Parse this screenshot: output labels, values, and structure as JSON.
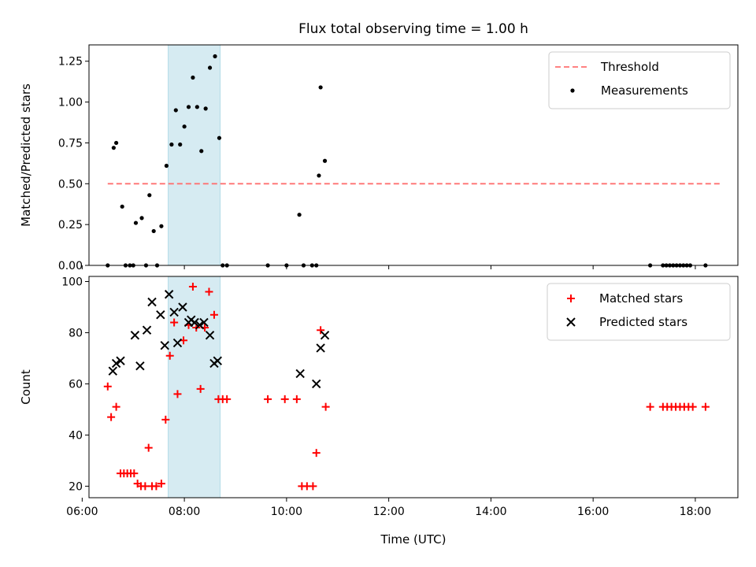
{
  "figure": {
    "title": "Flux total observing time = 1.00 h",
    "xlabel": "Time (UTC)"
  },
  "chart_data": [
    {
      "type": "scatter",
      "panel": "top",
      "title": "Flux total observing time = 1.00 h",
      "xlabel": "",
      "ylabel": "Matched/Predicted stars",
      "xlim": [
        "06:08",
        "18:50"
      ],
      "ylim": [
        0,
        1.35
      ],
      "xticks": [
        "06:00",
        "08:00",
        "10:00",
        "12:00",
        "14:00",
        "16:00",
        "18:00"
      ],
      "yticks": [
        "0.00",
        "0.25",
        "0.50",
        "0.75",
        "1.00",
        "1.25"
      ],
      "grid": false,
      "legend": "top-right",
      "highlight_span": {
        "x0": "07:41",
        "x1": "08:42",
        "color": "#add8e6"
      },
      "lines": [
        {
          "name": "Threshold",
          "color": "#ff7070",
          "style": "dashed",
          "x": [
            "06:30",
            "18:30"
          ],
          "y": [
            0.5,
            0.5
          ]
        }
      ],
      "series": [
        {
          "name": "Measurements",
          "color": "#000000",
          "marker": "dot",
          "points": [
            [
              "06:30",
              0
            ],
            [
              "06:37",
              0.72
            ],
            [
              "06:40",
              0.75
            ],
            [
              "06:47",
              0.36
            ],
            [
              "06:51",
              0
            ],
            [
              "06:56",
              0
            ],
            [
              "07:00",
              0
            ],
            [
              "07:03",
              0.26
            ],
            [
              "07:10",
              0.29
            ],
            [
              "07:15",
              0
            ],
            [
              "07:19",
              0.43
            ],
            [
              "07:24",
              0.21
            ],
            [
              "07:28",
              0
            ],
            [
              "07:33",
              0.24
            ],
            [
              "07:39",
              0.61
            ],
            [
              "07:45",
              0.74
            ],
            [
              "07:50",
              0.95
            ],
            [
              "07:55",
              0.74
            ],
            [
              "08:00",
              0.85
            ],
            [
              "08:05",
              0.97
            ],
            [
              "08:10",
              1.15
            ],
            [
              "08:15",
              0.97
            ],
            [
              "08:20",
              0.7
            ],
            [
              "08:25",
              0.96
            ],
            [
              "08:30",
              1.21
            ],
            [
              "08:36",
              1.28
            ],
            [
              "08:41",
              0.78
            ],
            [
              "08:45",
              0
            ],
            [
              "08:50",
              0
            ],
            [
              "09:38",
              0
            ],
            [
              "10:00",
              0
            ],
            [
              "10:15",
              0.31
            ],
            [
              "10:20",
              0
            ],
            [
              "10:30",
              0
            ],
            [
              "10:35",
              0
            ],
            [
              "10:38",
              0.55
            ],
            [
              "10:40",
              1.09
            ],
            [
              "10:45",
              0.64
            ],
            [
              "17:07",
              0
            ],
            [
              "17:22",
              0
            ],
            [
              "17:26",
              0
            ],
            [
              "17:30",
              0
            ],
            [
              "17:34",
              0
            ],
            [
              "17:38",
              0
            ],
            [
              "17:42",
              0
            ],
            [
              "17:46",
              0
            ],
            [
              "17:50",
              0
            ],
            [
              "17:54",
              0
            ],
            [
              "18:12",
              0
            ]
          ]
        }
      ]
    },
    {
      "type": "scatter",
      "panel": "bottom",
      "xlabel": "Time (UTC)",
      "ylabel": "Count",
      "xlim": [
        "06:08",
        "18:50"
      ],
      "ylim": [
        15.5,
        102
      ],
      "xticks": [
        "06:00",
        "08:00",
        "10:00",
        "12:00",
        "14:00",
        "16:00",
        "18:00"
      ],
      "yticks": [
        "20",
        "40",
        "60",
        "80",
        "100"
      ],
      "grid": false,
      "legend": "top-right",
      "highlight_span": {
        "x0": "07:41",
        "x1": "08:42",
        "color": "#add8e6"
      },
      "series": [
        {
          "name": "Matched stars",
          "color": "#ff0000",
          "marker": "plus",
          "points": [
            [
              "06:30",
              59
            ],
            [
              "06:34",
              47
            ],
            [
              "06:40",
              51
            ],
            [
              "06:45",
              25
            ],
            [
              "06:49",
              25
            ],
            [
              "06:53",
              25
            ],
            [
              "06:57",
              25
            ],
            [
              "07:01",
              25
            ],
            [
              "07:05",
              21
            ],
            [
              "07:09",
              20
            ],
            [
              "07:14",
              20
            ],
            [
              "07:18",
              35
            ],
            [
              "07:22",
              20
            ],
            [
              "07:27",
              20
            ],
            [
              "07:33",
              21
            ],
            [
              "07:38",
              46
            ],
            [
              "07:43",
              71
            ],
            [
              "07:48",
              84
            ],
            [
              "07:52",
              56
            ],
            [
              "07:59",
              77
            ],
            [
              "08:05",
              83
            ],
            [
              "08:10",
              98
            ],
            [
              "08:14",
              82
            ],
            [
              "08:19",
              58
            ],
            [
              "08:24",
              82
            ],
            [
              "08:29",
              96
            ],
            [
              "08:35",
              87
            ],
            [
              "08:40",
              54
            ],
            [
              "08:45",
              54
            ],
            [
              "08:50",
              54
            ],
            [
              "09:38",
              54
            ],
            [
              "09:58",
              54
            ],
            [
              "10:12",
              54
            ],
            [
              "10:18",
              20
            ],
            [
              "10:24",
              20
            ],
            [
              "10:31",
              20
            ],
            [
              "10:35",
              33
            ],
            [
              "10:40",
              81
            ],
            [
              "10:46",
              51
            ],
            [
              "17:07",
              51
            ],
            [
              "17:22",
              51
            ],
            [
              "17:27",
              51
            ],
            [
              "17:32",
              51
            ],
            [
              "17:37",
              51
            ],
            [
              "17:42",
              51
            ],
            [
              "17:47",
              51
            ],
            [
              "17:52",
              51
            ],
            [
              "17:57",
              51
            ],
            [
              "18:12",
              51
            ]
          ]
        },
        {
          "name": "Predicted stars",
          "color": "#000000",
          "marker": "x",
          "points": [
            [
              "06:36",
              65
            ],
            [
              "06:40",
              68
            ],
            [
              "06:45",
              69
            ],
            [
              "07:02",
              79
            ],
            [
              "07:08",
              67
            ],
            [
              "07:16",
              81
            ],
            [
              "07:22",
              92
            ],
            [
              "07:32",
              87
            ],
            [
              "07:37",
              75
            ],
            [
              "07:42",
              95
            ],
            [
              "07:48",
              88
            ],
            [
              "07:52",
              76
            ],
            [
              "07:58",
              90
            ],
            [
              "08:05",
              84
            ],
            [
              "08:08",
              85
            ],
            [
              "08:12",
              84
            ],
            [
              "08:18",
              83
            ],
            [
              "08:23",
              84
            ],
            [
              "08:30",
              79
            ],
            [
              "08:35",
              68
            ],
            [
              "08:39",
              69
            ],
            [
              "10:16",
              64
            ],
            [
              "10:35",
              60
            ],
            [
              "10:40",
              74
            ],
            [
              "10:45",
              79
            ]
          ]
        }
      ]
    }
  ]
}
